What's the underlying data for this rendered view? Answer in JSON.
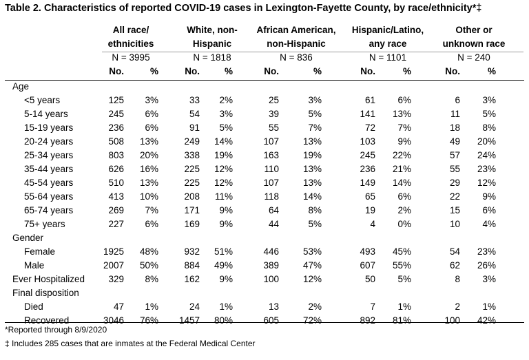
{
  "title": "Table 2. Characteristics of reported COVID-19 cases in Lexington-Fayette County, by race/ethnicity*‡",
  "groups": [
    {
      "line1": "All race/",
      "line2": "ethnicities",
      "n": "N = 3995"
    },
    {
      "line1": "White, non-",
      "line2": "Hispanic",
      "n": "N = 1818"
    },
    {
      "line1": "African American,",
      "line2": "non-Hispanic",
      "n": "N = 836"
    },
    {
      "line1": "Hispanic/Latino,",
      "line2": "any race",
      "n": "N = 1101"
    },
    {
      "line1": "Other or",
      "line2": "unknown race",
      "n": "N = 240"
    }
  ],
  "subheaders": {
    "no": "No.",
    "pct": "%"
  },
  "rows": [
    {
      "label": "Age",
      "type": "section",
      "values": []
    },
    {
      "label": "<5 years",
      "type": "item",
      "values": [
        "125",
        "3%",
        "33",
        "2%",
        "25",
        "3%",
        "61",
        "6%",
        "6",
        "3%"
      ]
    },
    {
      "label": "5-14 years",
      "type": "item",
      "values": [
        "245",
        "6%",
        "54",
        "3%",
        "39",
        "5%",
        "141",
        "13%",
        "11",
        "5%"
      ]
    },
    {
      "label": "15-19 years",
      "type": "item",
      "values": [
        "236",
        "6%",
        "91",
        "5%",
        "55",
        "7%",
        "72",
        "7%",
        "18",
        "8%"
      ]
    },
    {
      "label": "20-24 years",
      "type": "item",
      "values": [
        "508",
        "13%",
        "249",
        "14%",
        "107",
        "13%",
        "103",
        "9%",
        "49",
        "20%"
      ]
    },
    {
      "label": "25-34 years",
      "type": "item",
      "values": [
        "803",
        "20%",
        "338",
        "19%",
        "163",
        "19%",
        "245",
        "22%",
        "57",
        "24%"
      ]
    },
    {
      "label": "35-44 years",
      "type": "item",
      "values": [
        "626",
        "16%",
        "225",
        "12%",
        "110",
        "13%",
        "236",
        "21%",
        "55",
        "23%"
      ]
    },
    {
      "label": "45-54 years",
      "type": "item",
      "values": [
        "510",
        "13%",
        "225",
        "12%",
        "107",
        "13%",
        "149",
        "14%",
        "29",
        "12%"
      ]
    },
    {
      "label": "55-64 years",
      "type": "item",
      "values": [
        "413",
        "10%",
        "208",
        "11%",
        "118",
        "14%",
        "65",
        "6%",
        "22",
        "9%"
      ]
    },
    {
      "label": "65-74 years",
      "type": "item",
      "values": [
        "269",
        "7%",
        "171",
        "9%",
        "64",
        "8%",
        "19",
        "2%",
        "15",
        "6%"
      ]
    },
    {
      "label": "75+ years",
      "type": "item",
      "values": [
        "227",
        "6%",
        "169",
        "9%",
        "44",
        "5%",
        "4",
        "0%",
        "10",
        "4%"
      ]
    },
    {
      "label": "Gender",
      "type": "section",
      "values": []
    },
    {
      "label": "Female",
      "type": "item",
      "values": [
        "1925",
        "48%",
        "932",
        "51%",
        "446",
        "53%",
        "493",
        "45%",
        "54",
        "23%"
      ]
    },
    {
      "label": "Male",
      "type": "item",
      "values": [
        "2007",
        "50%",
        "884",
        "49%",
        "389",
        "47%",
        "607",
        "55%",
        "62",
        "26%"
      ]
    },
    {
      "label": "Ever Hospitalized",
      "type": "section",
      "values": [
        "329",
        "8%",
        "162",
        "9%",
        "100",
        "12%",
        "50",
        "5%",
        "8",
        "3%"
      ]
    },
    {
      "label": "Final disposition",
      "type": "section",
      "values": []
    },
    {
      "label": "Died",
      "type": "item",
      "values": [
        "47",
        "1%",
        "24",
        "1%",
        "13",
        "2%",
        "7",
        "1%",
        "2",
        "1%"
      ]
    },
    {
      "label": "Recovered",
      "type": "item",
      "values": [
        "3046",
        "76%",
        "1457",
        "80%",
        "605",
        "72%",
        "892",
        "81%",
        "100",
        "42%"
      ]
    }
  ],
  "footnotes": [
    "*Reported through 8/9/2020",
    "‡ Includes 285 cases that are inmates at the Federal Medical Center"
  ]
}
